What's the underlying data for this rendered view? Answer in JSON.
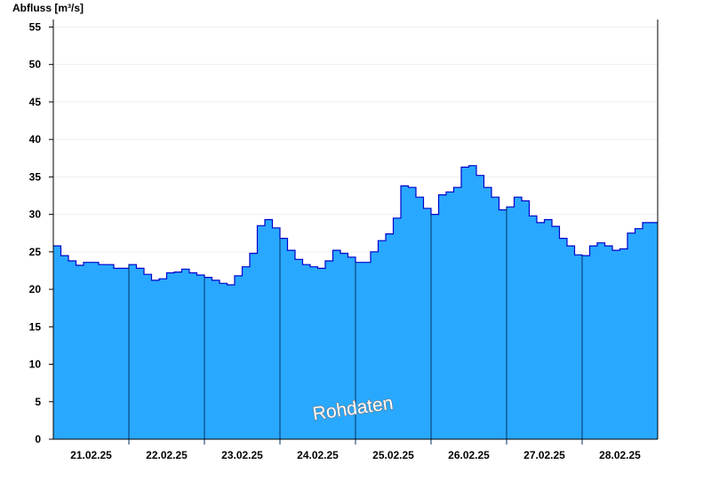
{
  "chart_data": {
    "type": "area",
    "ylabel": "Abfluss [m³/s]",
    "watermark": "Rohdaten",
    "ylim": [
      0,
      56
    ],
    "yticks": [
      0,
      5,
      10,
      15,
      20,
      25,
      30,
      35,
      40,
      45,
      50,
      55
    ],
    "xlim": [
      0,
      8
    ],
    "day_labels": [
      "21.02.25",
      "22.02.25",
      "23.02.25",
      "24.02.25",
      "25.02.25",
      "26.02.25",
      "27.02.25",
      "28.02.25"
    ],
    "x_unit": "days from 21.02.25 00:00",
    "x": [
      0,
      0.1,
      0.2,
      0.3,
      0.4,
      0.5,
      0.6,
      0.7,
      0.8,
      0.9,
      1.0,
      1.1,
      1.2,
      1.3,
      1.4,
      1.5,
      1.6,
      1.7,
      1.8,
      1.9,
      2.0,
      2.1,
      2.2,
      2.3,
      2.4,
      2.5,
      2.6,
      2.7,
      2.8,
      2.9,
      3.0,
      3.1,
      3.2,
      3.3,
      3.4,
      3.5,
      3.6,
      3.7,
      3.8,
      3.9,
      4.0,
      4.1,
      4.2,
      4.3,
      4.4,
      4.5,
      4.6,
      4.7,
      4.8,
      4.9,
      5.0,
      5.1,
      5.2,
      5.3,
      5.4,
      5.5,
      5.6,
      5.7,
      5.8,
      5.9,
      6.0,
      6.1,
      6.2,
      6.3,
      6.4,
      6.5,
      6.6,
      6.7,
      6.8,
      6.9,
      7.0,
      7.1,
      7.2,
      7.3,
      7.4,
      7.5,
      7.6,
      7.7,
      7.8,
      7.9,
      8.0
    ],
    "series": [
      {
        "name": "",
        "color": "#29a8ff",
        "line_color": "#0000cc",
        "values": [
          25.8,
          24.5,
          23.8,
          23.2,
          23.6,
          23.6,
          23.3,
          23.3,
          22.8,
          22.8,
          23.3,
          22.8,
          22.0,
          21.2,
          21.4,
          22.2,
          22.3,
          22.7,
          22.2,
          21.9,
          21.6,
          21.2,
          20.8,
          20.6,
          21.8,
          23.0,
          24.8,
          28.5,
          29.3,
          28.2,
          26.8,
          25.2,
          24.0,
          23.3,
          23.0,
          22.8,
          23.8,
          25.2,
          24.8,
          24.3,
          23.6,
          23.6,
          25.0,
          26.5,
          27.4,
          29.5,
          33.8,
          33.6,
          32.3,
          30.8,
          30.0,
          32.6,
          33.0,
          33.6,
          36.3,
          36.5,
          35.2,
          33.6,
          32.3,
          30.6,
          31.0,
          32.3,
          31.8,
          29.8,
          28.9,
          29.3,
          28.4,
          26.8,
          25.8,
          24.6,
          24.5,
          25.8,
          26.2,
          25.8,
          25.2,
          25.4,
          27.5,
          28.1,
          28.9,
          28.9,
          28.9
        ]
      }
    ],
    "grid": {
      "horizontal": true,
      "vertical_day_lines": true
    },
    "colors": {
      "gridline": "#eeeeee",
      "day_line": "#003366",
      "axis": "#000000"
    }
  }
}
